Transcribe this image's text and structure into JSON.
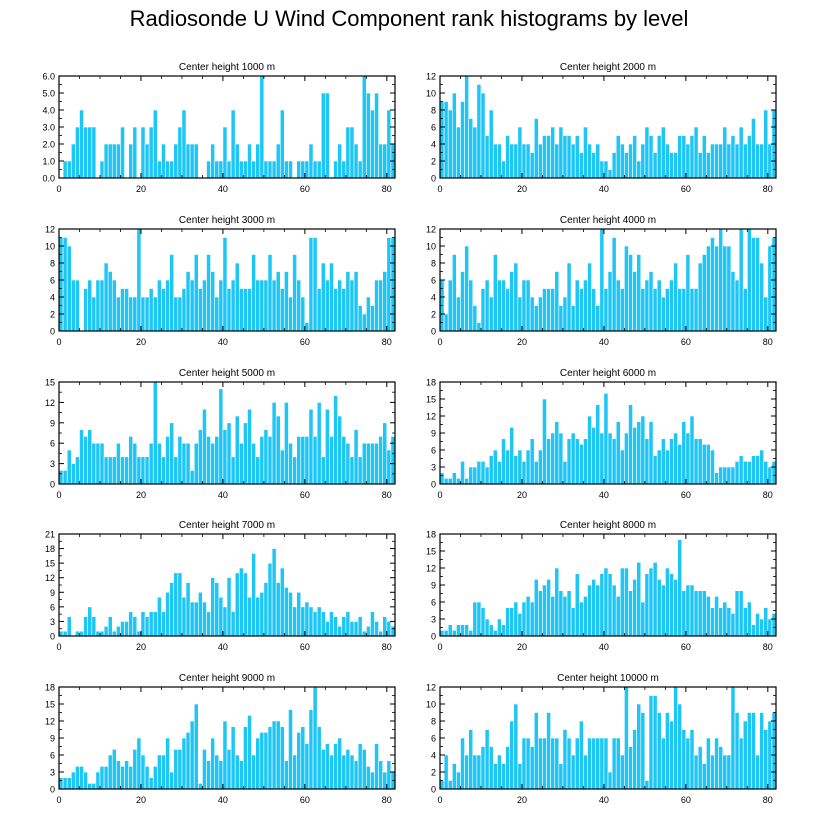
{
  "title": "Radiosonde U Wind Component rank histograms by level",
  "style": {
    "bar_color": "#1ec6f5",
    "bar_edge": "#ffffff",
    "axis_color": "#000000"
  },
  "x_ticks": [
    0,
    20,
    40,
    60,
    80
  ],
  "x_minor_step": 5,
  "chart_data": [
    {
      "type": "bar",
      "title": "Center height 1000 m",
      "xlim": [
        0,
        82
      ],
      "ylim": [
        0,
        6
      ],
      "y_ticks": [
        0,
        1,
        2,
        3,
        4,
        5,
        6
      ],
      "y_tick_labels": [
        "0.0",
        "1.0",
        "2.0",
        "3.0",
        "4.0",
        "5.0",
        "6.0"
      ],
      "values": [
        0,
        1,
        1,
        2,
        3,
        4,
        3,
        3,
        3,
        0,
        1,
        2,
        2,
        2,
        2,
        3,
        0,
        2,
        3,
        0,
        3,
        2,
        3,
        4,
        1,
        2,
        1,
        1,
        2,
        3,
        4,
        2,
        2,
        2,
        0,
        0,
        1,
        2,
        1,
        1,
        3,
        1,
        4,
        2,
        1,
        1,
        2,
        1,
        2,
        6,
        1,
        1,
        1,
        2,
        4,
        1,
        1,
        0,
        1,
        1,
        1,
        2,
        1,
        1,
        5,
        5,
        0,
        1,
        2,
        1,
        3,
        3,
        2,
        1,
        6,
        5,
        4,
        5,
        2,
        2,
        4,
        2
      ]
    },
    {
      "type": "bar",
      "title": "Center height 2000 m",
      "xlim": [
        0,
        82
      ],
      "ylim": [
        0,
        12
      ],
      "y_ticks": [
        0,
        2,
        4,
        6,
        8,
        10,
        12
      ],
      "values": [
        9,
        9,
        8,
        10,
        6,
        9,
        12,
        7,
        6,
        11,
        10,
        5,
        8,
        4,
        4,
        2,
        5,
        4,
        4,
        6,
        4,
        4,
        3,
        7,
        4,
        5,
        5,
        6,
        4,
        6,
        5,
        5,
        4,
        5,
        3,
        6,
        4,
        3,
        4,
        2,
        2,
        1,
        3,
        5,
        4,
        3,
        4,
        5,
        2,
        4,
        6,
        5,
        3,
        5,
        6,
        4,
        3,
        3,
        5,
        5,
        4,
        5,
        6,
        3,
        5,
        3,
        4,
        4,
        4,
        6,
        4,
        5,
        4,
        6,
        4,
        5,
        7,
        4,
        4,
        8,
        4,
        8
      ]
    },
    {
      "type": "bar",
      "title": "Center height 3000 m",
      "xlim": [
        0,
        82
      ],
      "ylim": [
        0,
        12
      ],
      "y_ticks": [
        0,
        2,
        4,
        6,
        8,
        10,
        12
      ],
      "values": [
        11,
        11,
        10,
        6,
        6,
        0,
        5,
        6,
        4,
        6,
        6,
        8,
        7,
        6,
        4,
        5,
        5,
        4,
        4,
        12,
        4,
        4,
        5,
        4,
        6,
        5,
        6,
        9,
        4,
        4,
        5,
        7,
        6,
        9,
        5,
        6,
        9,
        7,
        4,
        6,
        11,
        5,
        6,
        8,
        5,
        5,
        5,
        9,
        6,
        6,
        6,
        9,
        6,
        7,
        5,
        7,
        4,
        9,
        6,
        4,
        1,
        11,
        11,
        5,
        8,
        6,
        8,
        5,
        6,
        5,
        7,
        6,
        7,
        3,
        2,
        4,
        3,
        6,
        6,
        7,
        11,
        11
      ]
    },
    {
      "type": "bar",
      "title": "Center height 4000 m",
      "xlim": [
        0,
        82
      ],
      "ylim": [
        0,
        12
      ],
      "y_ticks": [
        0,
        2,
        4,
        6,
        8,
        10,
        12
      ],
      "values": [
        6,
        2,
        6,
        9,
        4,
        7,
        10,
        6,
        3,
        1,
        5,
        6,
        4,
        9,
        6,
        6,
        5,
        7,
        8,
        4,
        6,
        6,
        4,
        3,
        4,
        5,
        5,
        5,
        7,
        3,
        4,
        8,
        3,
        6,
        5,
        6,
        8,
        5,
        3,
        12,
        5,
        7,
        11,
        6,
        5,
        10,
        9,
        7,
        9,
        5,
        6,
        7,
        5,
        6,
        4,
        5,
        6,
        8,
        5,
        5,
        9,
        5,
        5,
        8,
        9,
        10,
        11,
        10,
        12,
        10,
        10,
        7,
        6,
        12,
        5,
        12,
        11,
        11,
        8,
        4,
        10,
        11
      ]
    },
    {
      "type": "bar",
      "title": "Center height 5000 m",
      "xlim": [
        0,
        82
      ],
      "ylim": [
        0,
        15
      ],
      "y_ticks": [
        0,
        3,
        6,
        9,
        12,
        15
      ],
      "values": [
        2,
        2,
        5,
        3,
        4,
        8,
        7,
        8,
        6,
        6,
        6,
        4,
        4,
        4,
        6,
        4,
        4,
        7,
        6,
        4,
        4,
        4,
        6,
        15,
        6,
        4,
        7,
        9,
        4,
        7,
        6,
        6,
        2,
        6,
        8,
        11,
        7,
        6,
        7,
        14,
        8,
        9,
        4,
        10,
        6,
        9,
        11,
        6,
        4,
        7,
        8,
        7,
        12,
        10,
        5,
        12,
        6,
        4,
        7,
        7,
        7,
        11,
        7,
        12,
        4,
        11,
        7,
        13,
        10,
        7,
        6,
        4,
        8,
        4,
        6,
        6,
        6,
        6,
        7,
        9,
        5,
        7
      ]
    },
    {
      "type": "bar",
      "title": "Center height 6000 m",
      "xlim": [
        0,
        82
      ],
      "ylim": [
        0,
        18
      ],
      "y_ticks": [
        0,
        3,
        6,
        9,
        12,
        15,
        18
      ],
      "values": [
        2,
        1,
        1,
        2,
        1,
        4,
        1,
        3,
        3,
        4,
        4,
        3,
        5,
        6,
        4,
        8,
        6,
        10,
        5,
        6,
        4,
        6,
        8,
        4,
        6,
        15,
        8,
        9,
        11,
        9,
        4,
        8,
        9,
        8,
        7,
        8,
        12,
        10,
        14,
        9,
        16,
        9,
        8,
        11,
        6,
        9,
        14,
        10,
        11,
        12,
        8,
        11,
        5,
        6,
        8,
        6,
        8,
        9,
        7,
        11,
        9,
        12,
        8,
        8,
        7,
        7,
        6,
        2,
        3,
        3,
        3,
        3,
        4,
        5,
        4,
        4,
        5,
        5,
        6,
        4,
        3,
        4
      ]
    },
    {
      "type": "bar",
      "title": "Center height 7000 m",
      "xlim": [
        0,
        82
      ],
      "ylim": [
        0,
        21
      ],
      "y_ticks": [
        0,
        3,
        6,
        9,
        12,
        15,
        18,
        21
      ],
      "values": [
        1,
        1,
        4,
        0,
        1,
        1,
        4,
        6,
        4,
        1,
        1,
        2,
        4,
        1,
        2,
        3,
        3,
        5,
        4,
        1,
        5,
        4,
        5,
        5,
        8,
        5,
        9,
        11,
        13,
        13,
        8,
        11,
        7,
        7,
        9,
        7,
        5,
        12,
        11,
        8,
        6,
        12,
        5,
        13,
        14,
        13,
        8,
        17,
        8,
        9,
        11,
        15,
        18,
        11,
        14,
        10,
        9,
        6,
        9,
        6,
        7,
        6,
        5,
        6,
        5,
        3,
        5,
        4,
        2,
        4,
        5,
        3,
        3,
        4,
        1,
        2,
        5,
        3,
        1,
        4,
        3,
        2
      ]
    },
    {
      "type": "bar",
      "title": "Center height 8000 m",
      "xlim": [
        0,
        82
      ],
      "ylim": [
        0,
        18
      ],
      "y_ticks": [
        0,
        3,
        6,
        9,
        12,
        15,
        18
      ],
      "values": [
        1,
        1,
        2,
        1,
        2,
        2,
        2,
        1,
        6,
        6,
        5,
        3,
        2,
        1,
        3,
        2,
        5,
        5,
        6,
        4,
        6,
        7,
        6,
        10,
        8,
        9,
        10,
        7,
        12,
        8,
        7,
        8,
        5,
        11,
        6,
        7,
        9,
        10,
        9,
        11,
        12,
        11,
        9,
        7,
        12,
        12,
        8,
        10,
        13,
        6,
        11,
        12,
        13,
        10,
        9,
        12,
        11,
        10,
        17,
        8,
        9,
        9,
        8,
        8,
        8,
        7,
        5,
        7,
        5,
        6,
        5,
        4,
        8,
        8,
        5,
        6,
        2,
        4,
        3,
        5,
        3,
        4
      ]
    },
    {
      "type": "bar",
      "title": "Center height 9000 m",
      "xlim": [
        0,
        82
      ],
      "ylim": [
        0,
        18
      ],
      "y_ticks": [
        0,
        3,
        6,
        9,
        12,
        15,
        18
      ],
      "values": [
        2,
        2,
        2,
        3,
        4,
        4,
        3,
        1,
        1,
        3,
        4,
        4,
        6,
        7,
        5,
        4,
        5,
        4,
        7,
        9,
        6,
        4,
        2,
        4,
        6,
        6,
        9,
        3,
        7,
        7,
        9,
        10,
        12,
        15,
        1,
        7,
        5,
        9,
        6,
        5,
        12,
        7,
        11,
        6,
        5,
        11,
        13,
        6,
        9,
        10,
        10,
        11,
        12,
        12,
        11,
        5,
        14,
        6,
        10,
        11,
        8,
        14,
        18,
        11,
        7,
        8,
        6,
        8,
        9,
        6,
        7,
        6,
        5,
        8,
        7,
        4,
        3,
        8,
        5,
        3,
        5,
        3
      ]
    },
    {
      "type": "bar",
      "title": "Center height 10000 m",
      "xlim": [
        0,
        82
      ],
      "ylim": [
        0,
        12
      ],
      "y_ticks": [
        0,
        2,
        4,
        6,
        8,
        10,
        12
      ],
      "values": [
        1,
        4,
        1,
        3,
        2,
        6,
        4,
        7,
        4,
        4,
        5,
        7,
        5,
        3,
        4,
        3,
        5,
        8,
        10,
        3,
        6,
        6,
        5,
        9,
        6,
        6,
        9,
        6,
        6,
        3,
        7,
        6,
        4,
        6,
        8,
        4,
        6,
        6,
        6,
        6,
        6,
        2,
        6,
        6,
        4,
        12,
        5,
        7,
        10,
        9,
        1,
        11,
        11,
        9,
        6,
        9,
        8,
        12,
        10,
        7,
        6,
        7,
        4,
        5,
        3,
        6,
        4,
        6,
        5,
        4,
        4,
        12,
        9,
        6,
        8,
        9,
        9,
        4,
        9,
        7,
        8,
        9
      ]
    }
  ]
}
